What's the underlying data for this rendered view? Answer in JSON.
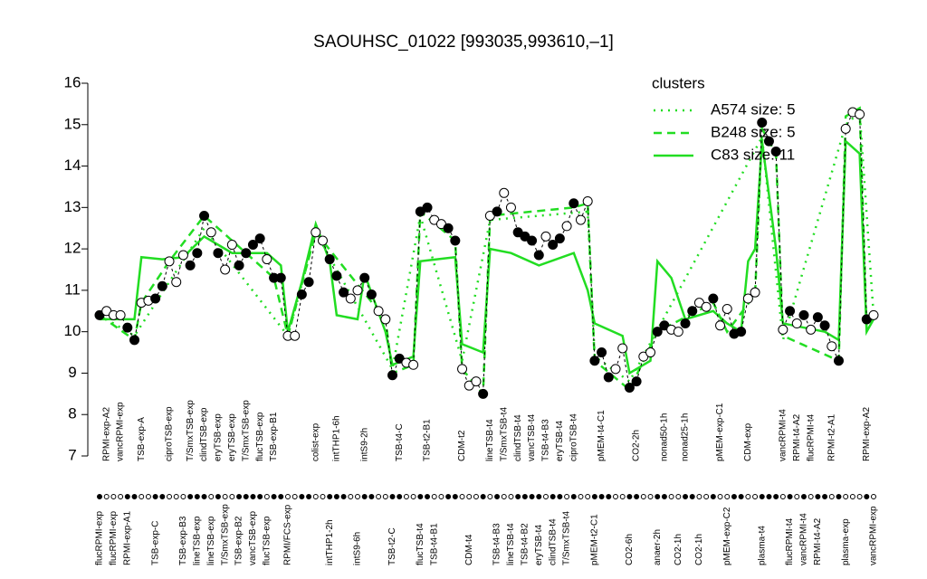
{
  "chart_data": {
    "type": "line",
    "title": "SAOUHSC_01022 [993035,993610,–1]",
    "ylim": [
      7,
      16
    ],
    "yticks": [
      7,
      8,
      9,
      10,
      11,
      12,
      13,
      14,
      15,
      16
    ],
    "legend_title": "clusters",
    "legend_color": "#22dd22",
    "categories": [
      "flucRPMI-exp",
      "RPMI-exp-A2",
      "flucRPMI-exp",
      "vancRPMI-exp",
      "RPMI-exp-A1",
      null,
      "TSB-exp-A",
      null,
      "TSB-exp-C",
      null,
      "ciproTSB-exp",
      null,
      "TSB-exp-B3",
      "T/SmxTSB-exp",
      "lineTSB-exp",
      "clindTSB-exp",
      "lineTSB-exp",
      "eryTSB-exp",
      "T/SmxTSB-exp",
      "eryTSB-exp",
      "TSB-exp-B2",
      "T/SmxTSB-exp",
      "vancTSB-exp",
      "flucTSB-exp",
      "flucTSB-exp",
      "TSB-exp-B1",
      null,
      "RPMI/FCS-exp",
      null,
      null,
      null,
      "colist-exp",
      null,
      "intTHP1-2h",
      "intTHP1-6h",
      null,
      null,
      "intS9-6h",
      "intS9-2h",
      null,
      null,
      null,
      "TSB-t2-C",
      "TSB-t4-C",
      null,
      null,
      "flucTSB-t4",
      "TSB-t2-B1",
      "TSB-t4-B1",
      null,
      null,
      null,
      "CDM-t2",
      "CDM-t4",
      null,
      null,
      "lineTSB-t4",
      "TSB-t4-B3",
      "T/SmxTSB-t4",
      "lineTSB-t4",
      "clindTSB-t4",
      "TSB-t4-B2",
      "vancTSB-t4",
      "eryTSB-t4",
      "TSB-t4-B3",
      "clindTSB-t4",
      "eryTSB-t4",
      "T/SmxTSB-t4",
      "ciproTSB-t4",
      null,
      null,
      "pMEM-t2-C1",
      "pMEM-t4-C1",
      null,
      null,
      null,
      "CO2-6h",
      "CO2-2h",
      null,
      null,
      "anaer-2h",
      "nonad50-1h",
      null,
      "CO2-1h",
      "nonad25-1h",
      null,
      "CO2-1h",
      null,
      null,
      "pMEM-exp-C1",
      "pMEM-exp-C2",
      null,
      null,
      "CDM-exp",
      null,
      "plasma-t4",
      null,
      null,
      "vancRPMI-t4",
      "flucRPMI-t4",
      "RPMI-t4-A2",
      "vancRPMI-t4",
      "flucRPMI-t4",
      "RPMI-t4-A2",
      null,
      "RPMI-t2-A1",
      null,
      "plasma-exp",
      null,
      null,
      "RPMI-exp-A2",
      "vancRPMI-exp"
    ],
    "values": [
      10.4,
      10.5,
      10.4,
      10.4,
      10.1,
      9.8,
      10.7,
      10.75,
      10.8,
      11.1,
      11.7,
      11.2,
      11.85,
      11.6,
      11.9,
      12.8,
      12.4,
      11.9,
      11.5,
      12.1,
      11.6,
      11.9,
      12.1,
      12.25,
      11.75,
      11.3,
      11.3,
      9.9,
      9.9,
      10.9,
      11.2,
      12.4,
      12.2,
      11.75,
      11.35,
      10.95,
      10.8,
      11.0,
      11.3,
      10.9,
      10.5,
      10.3,
      8.95,
      9.35,
      9.25,
      9.2,
      12.9,
      13.0,
      12.7,
      12.6,
      12.5,
      12.2,
      9.1,
      8.7,
      8.8,
      8.5,
      12.8,
      12.9,
      13.35,
      13.0,
      12.4,
      12.3,
      12.2,
      11.85,
      12.3,
      12.1,
      12.25,
      12.55,
      13.1,
      12.7,
      13.15,
      9.3,
      9.5,
      8.9,
      9.1,
      9.6,
      8.65,
      8.8,
      9.4,
      9.5,
      10.0,
      10.15,
      10.05,
      10.0,
      10.2,
      10.5,
      10.7,
      10.6,
      10.8,
      10.15,
      10.55,
      9.95,
      10.0,
      10.8,
      10.95,
      15.05,
      14.6,
      14.35,
      10.05,
      10.5,
      10.2,
      10.4,
      10.05,
      10.35,
      10.15,
      9.65,
      9.3,
      14.9,
      15.3,
      15.25,
      10.3,
      10.4
    ],
    "point_colors": [
      "#000",
      "#fff",
      "#fff",
      "#fff",
      "#000",
      "#000",
      "#fff",
      "#fff",
      "#000",
      "#000",
      "#fff",
      "#fff",
      "#fff",
      "#000",
      "#000",
      "#000",
      "#fff",
      "#000",
      "#fff",
      "#fff",
      "#000",
      "#000",
      "#000",
      "#000",
      "#fff",
      "#000",
      "#000",
      "#fff",
      "#fff",
      "#000",
      "#000",
      "#fff",
      "#fff",
      "#000",
      "#000",
      "#000",
      "#fff",
      "#fff",
      "#000",
      "#000",
      "#fff",
      "#fff",
      "#000",
      "#000",
      "#fff",
      "#fff",
      "#000",
      "#000",
      "#fff",
      "#fff",
      "#000",
      "#000",
      "#fff",
      "#fff",
      "#fff",
      "#000",
      "#fff",
      "#000",
      "#fff",
      "#fff",
      "#000",
      "#000",
      "#000",
      "#000",
      "#fff",
      "#000",
      "#000",
      "#fff",
      "#000",
      "#fff",
      "#fff",
      "#000",
      "#000",
      "#000",
      "#fff",
      "#fff",
      "#000",
      "#000",
      "#fff",
      "#fff",
      "#000",
      "#000",
      "#fff",
      "#fff",
      "#000",
      "#000",
      "#fff",
      "#fff",
      "#000",
      "#fff",
      "#fff",
      "#000",
      "#000",
      "#fff",
      "#fff",
      "#000",
      "#000",
      "#000",
      "#fff",
      "#000",
      "#fff",
      "#000",
      "#fff",
      "#000",
      "#000",
      "#fff",
      "#000",
      "#fff",
      "#fff",
      "#fff",
      "#000",
      "#fff"
    ],
    "series": [
      {
        "name": "A574 size: 5",
        "color": "#22dd22",
        "dash": "2,6",
        "x": [
          1,
          6,
          16,
          28,
          32,
          43,
          47,
          53,
          57,
          71,
          72,
          77,
          96,
          99,
          108,
          110,
          112
        ],
        "values": [
          10.4,
          9.9,
          12.5,
          9.9,
          12.4,
          9.1,
          12.8,
          9.3,
          12.7,
          12.9,
          9.4,
          8.8,
          14.7,
          9.8,
          15.0,
          15.3,
          10.4
        ]
      },
      {
        "name": "B248 size: 5",
        "color": "#22dd22",
        "dash": "9,6",
        "x": [
          1,
          6,
          7,
          11,
          16,
          26,
          28,
          32,
          42,
          43,
          46,
          47,
          52,
          53,
          56,
          57,
          69,
          71,
          72,
          77,
          81,
          89,
          91,
          95,
          96,
          98,
          99,
          107,
          108,
          110,
          111,
          112
        ],
        "values": [
          10.4,
          9.8,
          10.7,
          11.7,
          12.8,
          11.3,
          9.9,
          12.4,
          10.3,
          9.0,
          9.2,
          12.9,
          12.2,
          9.1,
          8.5,
          12.8,
          13.0,
          13.1,
          9.3,
          8.6,
          10.0,
          10.7,
          10.0,
          10.9,
          14.9,
          14.3,
          9.9,
          9.3,
          15.2,
          15.4,
          10.1,
          10.4
        ]
      },
      {
        "name": "C83 size: 11",
        "color": "#22dd22",
        "dash": "none",
        "x": [
          1,
          6,
          7,
          10,
          13,
          16,
          20,
          25,
          27,
          28,
          30,
          32,
          34,
          35,
          38,
          39,
          42,
          43,
          46,
          47,
          52,
          53,
          56,
          57,
          60,
          64,
          69,
          71,
          72,
          76,
          77,
          80,
          81,
          83,
          85,
          89,
          91,
          93,
          94,
          95,
          96,
          98,
          99,
          105,
          107,
          108,
          110,
          111,
          112
        ],
        "values": [
          10.3,
          10.3,
          11.8,
          11.75,
          11.8,
          12.3,
          11.9,
          11.9,
          11.6,
          10.0,
          11.2,
          12.6,
          11.7,
          10.4,
          10.3,
          11.4,
          10.0,
          9.2,
          9.4,
          11.7,
          11.8,
          9.7,
          9.5,
          12.0,
          11.9,
          11.6,
          11.9,
          11.0,
          10.2,
          9.9,
          9.0,
          9.3,
          11.7,
          11.3,
          10.3,
          10.5,
          10.2,
          10.0,
          11.7,
          12.0,
          14.6,
          12.0,
          10.2,
          10.0,
          9.8,
          14.6,
          14.3,
          10.0,
          10.3
        ]
      }
    ]
  }
}
